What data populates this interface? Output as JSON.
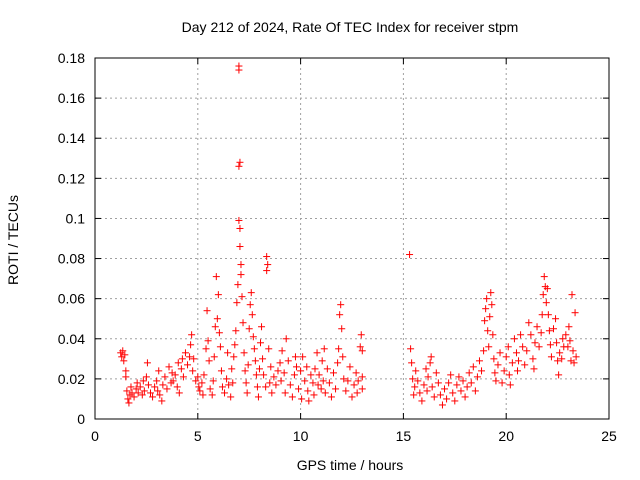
{
  "chart_data": {
    "type": "scatter",
    "title": "Day 212 of 2024, Rate Of TEC Index for receiver stpm",
    "xlabel": "GPS time / hours",
    "ylabel": "ROTI / TECUs",
    "xlim": [
      0,
      25
    ],
    "ylim": [
      0,
      0.18
    ],
    "xticks": [
      0,
      5,
      10,
      15,
      20,
      25
    ],
    "xtick_labels": [
      "0",
      "5",
      "10",
      "15",
      "20",
      "25"
    ],
    "yticks": [
      0,
      0.02,
      0.04,
      0.06,
      0.08,
      0.1,
      0.12,
      0.14,
      0.16,
      0.18
    ],
    "ytick_labels": [
      "0",
      "0.02",
      "0.04",
      "0.06",
      "0.08",
      "0.1",
      "0.12",
      "0.14",
      "0.16",
      "0.18"
    ],
    "grid": true,
    "marker": "plus",
    "color": "#ff0000",
    "series": [
      {
        "points": [
          [
            1.25,
            0.033
          ],
          [
            1.3,
            0.031
          ],
          [
            1.35,
            0.034
          ],
          [
            1.4,
            0.029
          ],
          [
            1.45,
            0.032
          ],
          [
            1.5,
            0.024
          ],
          [
            1.5,
            0.021
          ],
          [
            1.55,
            0.014
          ],
          [
            1.6,
            0.01
          ],
          [
            1.65,
            0.008
          ],
          [
            1.7,
            0.012
          ],
          [
            1.75,
            0.016
          ],
          [
            1.8,
            0.013
          ],
          [
            1.9,
            0.011
          ],
          [
            2.0,
            0.015
          ],
          [
            2.05,
            0.018
          ],
          [
            2.1,
            0.013
          ],
          [
            2.2,
            0.016
          ],
          [
            2.3,
            0.012
          ],
          [
            2.35,
            0.019
          ],
          [
            2.4,
            0.014
          ],
          [
            2.5,
            0.021
          ],
          [
            2.55,
            0.028
          ],
          [
            2.6,
            0.017
          ],
          [
            2.7,
            0.013
          ],
          [
            2.8,
            0.011
          ],
          [
            2.9,
            0.016
          ],
          [
            3.0,
            0.019
          ],
          [
            3.05,
            0.014
          ],
          [
            3.1,
            0.024
          ],
          [
            3.15,
            0.012
          ],
          [
            3.25,
            0.009
          ],
          [
            3.3,
            0.017
          ],
          [
            3.4,
            0.021
          ],
          [
            3.5,
            0.015
          ],
          [
            3.6,
            0.026
          ],
          [
            3.7,
            0.018
          ],
          [
            3.75,
            0.023
          ],
          [
            3.8,
            0.019
          ],
          [
            3.9,
            0.022
          ],
          [
            4.0,
            0.016
          ],
          [
            4.05,
            0.028
          ],
          [
            4.1,
            0.013
          ],
          [
            4.2,
            0.025
          ],
          [
            4.25,
            0.03
          ],
          [
            4.3,
            0.021
          ],
          [
            4.4,
            0.033
          ],
          [
            4.5,
            0.027
          ],
          [
            4.6,
            0.031
          ],
          [
            4.65,
            0.037
          ],
          [
            4.7,
            0.042
          ],
          [
            4.75,
            0.024
          ],
          [
            4.8,
            0.03
          ],
          [
            4.9,
            0.019
          ],
          [
            5.0,
            0.021
          ],
          [
            5.05,
            0.016
          ],
          [
            5.1,
            0.014
          ],
          [
            5.2,
            0.018
          ],
          [
            5.25,
            0.012
          ],
          [
            5.3,
            0.022
          ],
          [
            5.4,
            0.035
          ],
          [
            5.45,
            0.054
          ],
          [
            5.5,
            0.039
          ],
          [
            5.55,
            0.029
          ],
          [
            5.6,
            0.015
          ],
          [
            5.7,
            0.012
          ],
          [
            5.75,
            0.019
          ],
          [
            5.8,
            0.031
          ],
          [
            5.85,
            0.046
          ],
          [
            5.9,
            0.071
          ],
          [
            5.95,
            0.05
          ],
          [
            6.0,
            0.062
          ],
          [
            6.05,
            0.043
          ],
          [
            6.1,
            0.036
          ],
          [
            6.15,
            0.024
          ],
          [
            6.2,
            0.016
          ],
          [
            6.3,
            0.013
          ],
          [
            6.4,
            0.02
          ],
          [
            6.45,
            0.033
          ],
          [
            6.5,
            0.017
          ],
          [
            6.6,
            0.011
          ],
          [
            6.65,
            0.025
          ],
          [
            6.7,
            0.018
          ],
          [
            6.75,
            0.031
          ],
          [
            6.8,
            0.037
          ],
          [
            6.85,
            0.044
          ],
          [
            6.9,
            0.058
          ],
          [
            6.95,
            0.067
          ],
          [
            7.0,
            0.099
          ],
          [
            7.0,
            0.126
          ],
          [
            7.0,
            0.174
          ],
          [
            7.0,
            0.176
          ],
          [
            7.05,
            0.128
          ],
          [
            7.05,
            0.095
          ],
          [
            7.05,
            0.086
          ],
          [
            7.1,
            0.077
          ],
          [
            7.1,
            0.072
          ],
          [
            7.15,
            0.061
          ],
          [
            7.2,
            0.048
          ],
          [
            7.25,
            0.033
          ],
          [
            7.3,
            0.024
          ],
          [
            7.35,
            0.018
          ],
          [
            7.4,
            0.013
          ],
          [
            7.45,
            0.027
          ],
          [
            7.5,
            0.045
          ],
          [
            7.55,
            0.057
          ],
          [
            7.6,
            0.063
          ],
          [
            7.65,
            0.052
          ],
          [
            7.7,
            0.041
          ],
          [
            7.75,
            0.035
          ],
          [
            7.8,
            0.029
          ],
          [
            7.85,
            0.022
          ],
          [
            7.9,
            0.016
          ],
          [
            7.95,
            0.011
          ],
          [
            8.0,
            0.025
          ],
          [
            8.05,
            0.038
          ],
          [
            8.1,
            0.046
          ],
          [
            8.15,
            0.03
          ],
          [
            8.2,
            0.022
          ],
          [
            8.3,
            0.016
          ],
          [
            8.35,
            0.074
          ],
          [
            8.35,
            0.081
          ],
          [
            8.4,
            0.077
          ],
          [
            8.45,
            0.035
          ],
          [
            8.5,
            0.018
          ],
          [
            8.55,
            0.026
          ],
          [
            8.6,
            0.013
          ],
          [
            8.7,
            0.021
          ],
          [
            8.8,
            0.017
          ],
          [
            8.9,
            0.024
          ],
          [
            9.0,
            0.028
          ],
          [
            9.05,
            0.019
          ],
          [
            9.1,
            0.034
          ],
          [
            9.2,
            0.023
          ],
          [
            9.25,
            0.013
          ],
          [
            9.3,
            0.04
          ],
          [
            9.4,
            0.029
          ],
          [
            9.5,
            0.017
          ],
          [
            9.6,
            0.011
          ],
          [
            9.7,
            0.022
          ],
          [
            9.75,
            0.031
          ],
          [
            9.8,
            0.026
          ],
          [
            9.9,
            0.015
          ],
          [
            10.0,
            0.024
          ],
          [
            10.05,
            0.01
          ],
          [
            10.1,
            0.031
          ],
          [
            10.2,
            0.019
          ],
          [
            10.3,
            0.026
          ],
          [
            10.35,
            0.014
          ],
          [
            10.4,
            0.009
          ],
          [
            10.5,
            0.022
          ],
          [
            10.6,
            0.018
          ],
          [
            10.65,
            0.012
          ],
          [
            10.7,
            0.025
          ],
          [
            10.8,
            0.033
          ],
          [
            10.85,
            0.017
          ],
          [
            10.9,
            0.022
          ],
          [
            11.0,
            0.015
          ],
          [
            11.05,
            0.029
          ],
          [
            11.1,
            0.019
          ],
          [
            11.15,
            0.035
          ],
          [
            11.2,
            0.013
          ],
          [
            11.3,
            0.025
          ],
          [
            11.4,
            0.018
          ],
          [
            11.5,
            0.011
          ],
          [
            11.6,
            0.023
          ],
          [
            11.7,
            0.015
          ],
          [
            11.8,
            0.028
          ],
          [
            11.85,
            0.035
          ],
          [
            11.9,
            0.052
          ],
          [
            11.95,
            0.057
          ],
          [
            12.0,
            0.045
          ],
          [
            12.05,
            0.031
          ],
          [
            12.1,
            0.02
          ],
          [
            12.2,
            0.014
          ],
          [
            12.3,
            0.019
          ],
          [
            12.4,
            0.026
          ],
          [
            12.5,
            0.011
          ],
          [
            12.6,
            0.017
          ],
          [
            12.7,
            0.023
          ],
          [
            12.75,
            0.013
          ],
          [
            12.8,
            0.019
          ],
          [
            12.9,
            0.036
          ],
          [
            12.95,
            0.042
          ],
          [
            13.0,
            0.034
          ],
          [
            13.0,
            0.021
          ],
          [
            13.0,
            0.015
          ],
          [
            15.3,
            0.082
          ],
          [
            15.35,
            0.035
          ],
          [
            15.4,
            0.028
          ],
          [
            15.45,
            0.02
          ],
          [
            15.5,
            0.012
          ],
          [
            15.55,
            0.016
          ],
          [
            15.6,
            0.024
          ],
          [
            15.7,
            0.019
          ],
          [
            15.8,
            0.013
          ],
          [
            15.9,
            0.009
          ],
          [
            16.0,
            0.017
          ],
          [
            16.1,
            0.025
          ],
          [
            16.15,
            0.014
          ],
          [
            16.2,
            0.021
          ],
          [
            16.3,
            0.028
          ],
          [
            16.35,
            0.031
          ],
          [
            16.4,
            0.016
          ],
          [
            16.5,
            0.011
          ],
          [
            16.6,
            0.023
          ],
          [
            16.7,
            0.018
          ],
          [
            16.8,
            0.012
          ],
          [
            16.9,
            0.007
          ],
          [
            17.0,
            0.015
          ],
          [
            17.1,
            0.01
          ],
          [
            17.2,
            0.018
          ],
          [
            17.3,
            0.022
          ],
          [
            17.4,
            0.013
          ],
          [
            17.5,
            0.009
          ],
          [
            17.6,
            0.017
          ],
          [
            17.7,
            0.021
          ],
          [
            17.8,
            0.014
          ],
          [
            17.9,
            0.019
          ],
          [
            18.0,
            0.011
          ],
          [
            18.1,
            0.016
          ],
          [
            18.2,
            0.023
          ],
          [
            18.3,
            0.018
          ],
          [
            18.4,
            0.026
          ],
          [
            18.5,
            0.014
          ],
          [
            18.6,
            0.021
          ],
          [
            18.7,
            0.029
          ],
          [
            18.8,
            0.024
          ],
          [
            18.9,
            0.034
          ],
          [
            18.95,
            0.049
          ],
          [
            19.0,
            0.055
          ],
          [
            19.05,
            0.06
          ],
          [
            19.1,
            0.044
          ],
          [
            19.15,
            0.036
          ],
          [
            19.2,
            0.051
          ],
          [
            19.25,
            0.063
          ],
          [
            19.3,
            0.057
          ],
          [
            19.35,
            0.042
          ],
          [
            19.4,
            0.03
          ],
          [
            19.45,
            0.023
          ],
          [
            19.5,
            0.019
          ],
          [
            19.6,
            0.027
          ],
          [
            19.7,
            0.033
          ],
          [
            19.8,
            0.018
          ],
          [
            19.9,
            0.024
          ],
          [
            20.0,
            0.031
          ],
          [
            20.1,
            0.036
          ],
          [
            20.15,
            0.022
          ],
          [
            20.2,
            0.017
          ],
          [
            20.3,
            0.028
          ],
          [
            20.4,
            0.04
          ],
          [
            20.5,
            0.033
          ],
          [
            20.55,
            0.024
          ],
          [
            20.6,
            0.029
          ],
          [
            20.7,
            0.042
          ],
          [
            20.8,
            0.036
          ],
          [
            20.9,
            0.027
          ],
          [
            21.0,
            0.034
          ],
          [
            21.1,
            0.048
          ],
          [
            21.2,
            0.042
          ],
          [
            21.3,
            0.03
          ],
          [
            21.35,
            0.025
          ],
          [
            21.4,
            0.038
          ],
          [
            21.5,
            0.046
          ],
          [
            21.6,
            0.036
          ],
          [
            21.7,
            0.043
          ],
          [
            21.75,
            0.052
          ],
          [
            21.8,
            0.062
          ],
          [
            21.85,
            0.071
          ],
          [
            21.9,
            0.066
          ],
          [
            21.95,
            0.058
          ],
          [
            22.0,
            0.065
          ],
          [
            22.05,
            0.052
          ],
          [
            22.1,
            0.044
          ],
          [
            22.15,
            0.037
          ],
          [
            22.2,
            0.031
          ],
          [
            22.3,
            0.045
          ],
          [
            22.4,
            0.05
          ],
          [
            22.45,
            0.038
          ],
          [
            22.5,
            0.029
          ],
          [
            22.55,
            0.022
          ],
          [
            22.6,
            0.033
          ],
          [
            22.7,
            0.03
          ],
          [
            22.75,
            0.04
          ],
          [
            22.8,
            0.036
          ],
          [
            22.9,
            0.042
          ],
          [
            23.0,
            0.036
          ],
          [
            23.05,
            0.046
          ],
          [
            23.1,
            0.039
          ],
          [
            23.15,
            0.029
          ],
          [
            23.2,
            0.062
          ],
          [
            23.25,
            0.034
          ],
          [
            23.3,
            0.028
          ],
          [
            23.35,
            0.053
          ],
          [
            23.4,
            0.031
          ]
        ]
      }
    ]
  }
}
